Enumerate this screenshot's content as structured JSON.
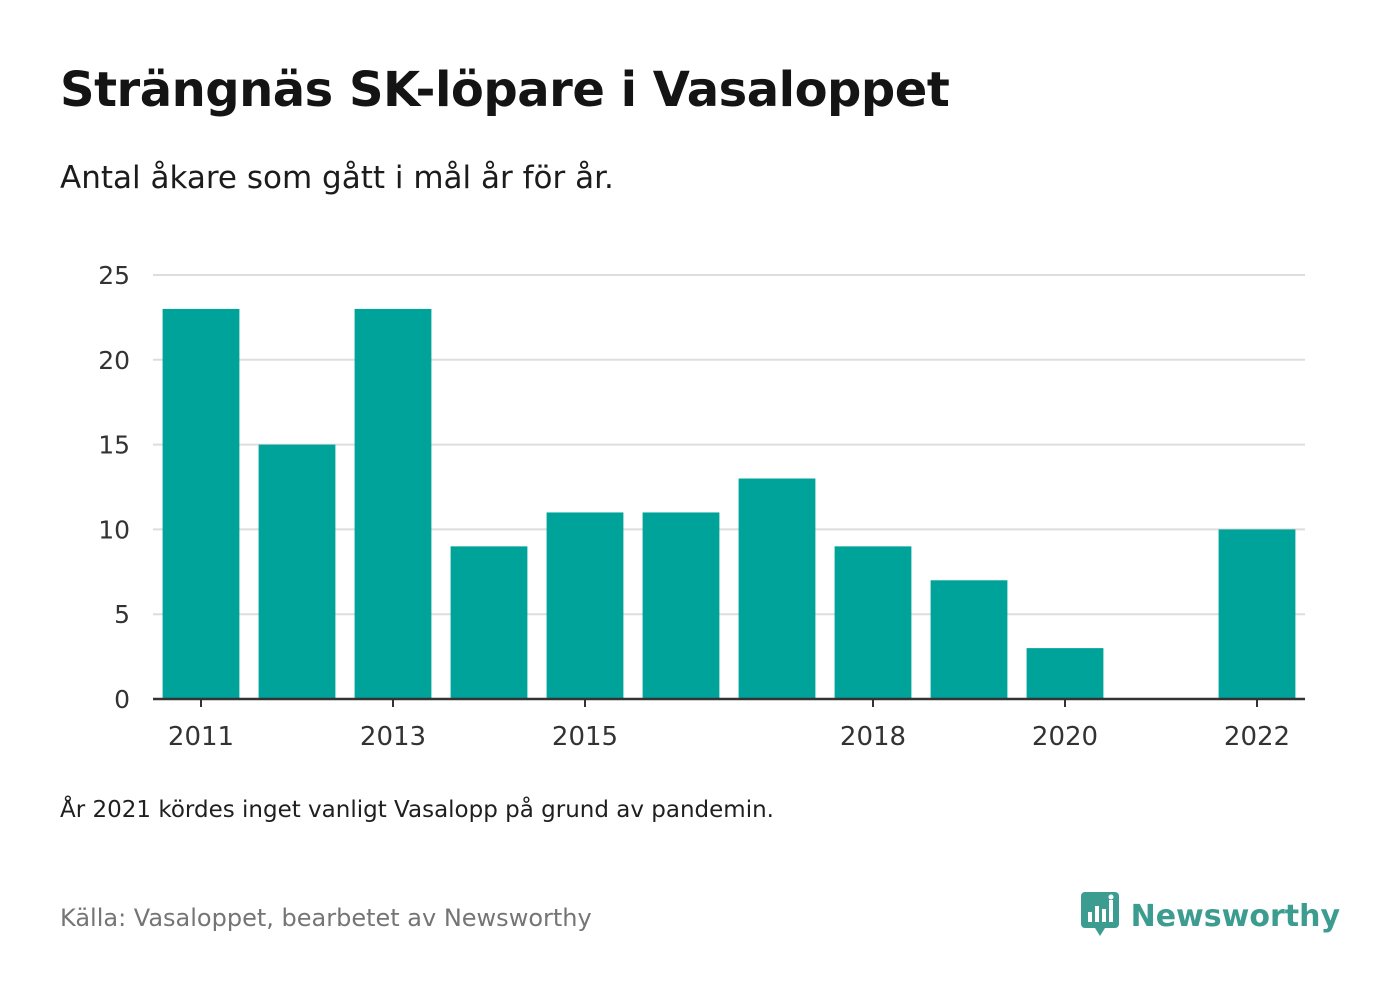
{
  "title": "Strängnäs SK-löpare i Vasaloppet",
  "subtitle": "Antal åkare som gått i mål år för år.",
  "note": "År 2021 kördes inget vanligt Vasalopp på grund av pandemin.",
  "source": "Källa: Vasaloppet, bearbetet av Newsworthy",
  "brand": {
    "name": "Newsworthy",
    "icon": "newsworthy-logo-icon"
  },
  "colors": {
    "bar": "#00a39a",
    "grid": "#dddddd",
    "axis": "#333333",
    "brand": "#3b9c8f"
  },
  "chart_data": {
    "type": "bar",
    "categories": [
      "2011",
      "2012",
      "2013",
      "2014",
      "2015",
      "2016",
      "2017",
      "2018",
      "2019",
      "2020",
      "2021",
      "2022"
    ],
    "values": [
      23,
      15,
      23,
      9,
      11,
      11,
      13,
      9,
      7,
      3,
      null,
      10
    ],
    "x_tick_labels": [
      "2011",
      "2013",
      "2015",
      "2018",
      "2020",
      "2022"
    ],
    "y_ticks": [
      0,
      5,
      10,
      15,
      20,
      25
    ],
    "ylim": [
      0,
      25
    ],
    "grid": true,
    "legend": "none"
  }
}
